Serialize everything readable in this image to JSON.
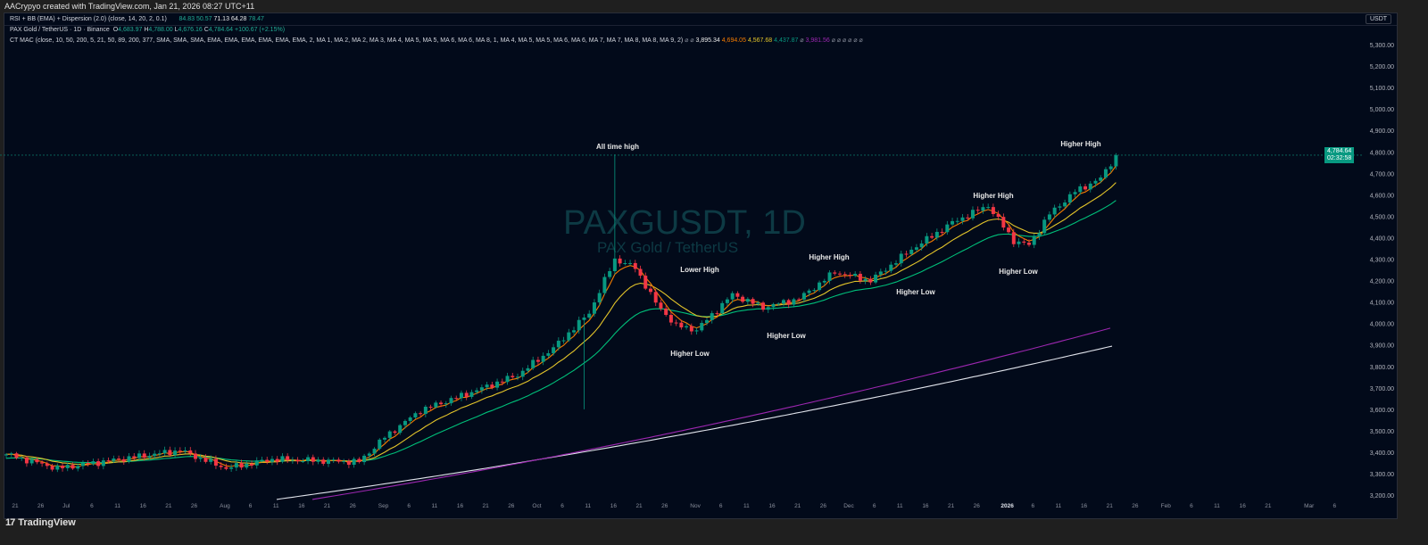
{
  "credit": "AACrypyo created with TradingView.com, Jan 21, 2026 08:27 UTC+11",
  "rsi": {
    "label": "RSI + BB (EMA) + Dispersion (2.0) (close, 14, 20, 2, 0.1)",
    "values": [
      "84.83",
      "50.57",
      "71.13",
      "64.28",
      "78.47"
    ]
  },
  "symbol": {
    "label": "PAX Gold / TetherUS · 1D · Binance",
    "o_label": "O",
    "o": "4,683.97",
    "h_label": "H",
    "h": "4,788.00",
    "l_label": "L",
    "l": "4,676.16",
    "c_label": "C",
    "c": "4,784.64",
    "change": "+100.67 (+2.15%)"
  },
  "mac": {
    "label": "CT MAC (close, 10, 50, 200, 5, 21, 50, 89, 200, 377, SMA, SMA, SMA, EMA, EMA, EMA, EMA, EMA, EMA, 2, MA 1, MA 2, MA 2, MA 3, MA 4, MA 5, MA 5, MA 6, MA 6, MA 8, 1, MA 4, MA 5, MA 5, MA 6, MA 6, MA 7, MA 7, MA 8, MA 8, MA 9, 2)",
    "null_a": "⌀ ⌀",
    "v1": "3,895.34",
    "v2": "4,694.05",
    "v3": "4,567.68",
    "v4": "4,437.87",
    "null_b": "⌀",
    "v5": "3,981.56",
    "null_c": "⌀ ⌀ ⌀ ⌀ ⌀ ⌀"
  },
  "watermark": {
    "title": "PAXGUSDT, 1D",
    "subtitle": "PAX Gold / TetherUS"
  },
  "axis": {
    "currency": "USDT",
    "price_ticks": [
      "5,300.00",
      "5,200.00",
      "5,100.00",
      "5,000.00",
      "4,900.00",
      "4,800.00",
      "4,700.00",
      "4,600.00",
      "4,500.00",
      "4,400.00",
      "4,300.00",
      "4,200.00",
      "4,100.00",
      "4,000.00",
      "3,900.00",
      "3,800.00",
      "3,700.00",
      "3,600.00",
      "3,500.00",
      "3,400.00",
      "3,300.00",
      "3,200.00"
    ],
    "date_ticks": [
      "21",
      "26",
      "Jul",
      "6",
      "11",
      "16",
      "21",
      "26",
      "Aug",
      "6",
      "11",
      "16",
      "21",
      "26",
      "Sep",
      "6",
      "11",
      "16",
      "21",
      "26",
      "Oct",
      "6",
      "11",
      "16",
      "21",
      "26",
      "Nov",
      "6",
      "11",
      "16",
      "21",
      "26",
      "Dec",
      "6",
      "11",
      "16",
      "21",
      "26",
      "2026",
      "6",
      "11",
      "16",
      "21",
      "26",
      "Feb",
      "6",
      "11",
      "16",
      "21",
      "Mar",
      "6"
    ],
    "last_price": "4,784.64",
    "countdown": "02:32:58"
  },
  "annotations": [
    "All time high",
    "Lower High",
    "Higher High",
    "Higher Low",
    "Higher Low",
    "Higher Low",
    "Higher High",
    "Higher Low",
    "Higher High"
  ],
  "colors": {
    "up": "#089981",
    "down": "#f23645",
    "ma_orange": "#f57c00",
    "ma_yellow": "#e4c52a",
    "ma_green": "#00c07a",
    "ma_purple": "#9c27b0",
    "ma_white": "#e0e3eb"
  },
  "price_path": {
    "days": [
      0,
      10,
      34,
      43,
      52,
      69,
      74,
      81,
      91,
      100,
      107,
      114,
      119,
      123,
      127,
      131,
      135,
      142,
      148,
      155,
      162,
      169,
      177,
      185,
      192,
      197,
      200,
      204,
      209,
      214,
      217
    ],
    "close": [
      3390,
      3325,
      3408,
      3325,
      3367,
      3355,
      3470,
      3595,
      3680,
      3760,
      3885,
      4050,
      4300,
      4260,
      4095,
      3990,
      3970,
      4135,
      4075,
      4115,
      4240,
      4200,
      4345,
      4470,
      4550,
      4385,
      4365,
      4510,
      4615,
      4676,
      4784
    ],
    "ath": 4788,
    "ma_white_end": 3895.34,
    "ma_purple_end": 3981.56
  },
  "brand": "TradingView"
}
